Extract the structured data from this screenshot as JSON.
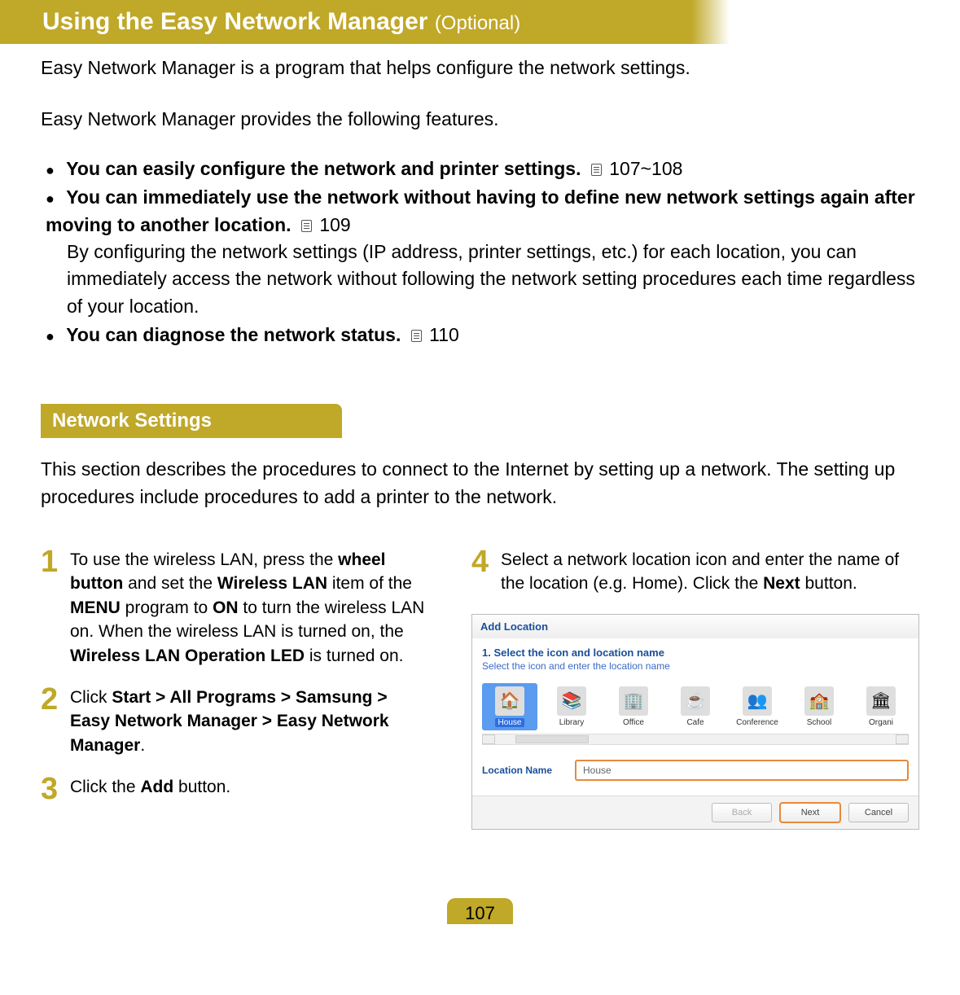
{
  "colors": {
    "accent": "#c0a828",
    "dialog_link": "#1a4e9b",
    "highlight_border": "#e68a3c"
  },
  "title": {
    "main": "Using the Easy Network Manager",
    "suffix": "(Optional)"
  },
  "intro1": "Easy Network Manager is a program that helps configure the network settings.",
  "intro2": "Easy Network Manager provides the following features.",
  "features": [
    {
      "text_bold": "You can easily configure the network and printer settings.",
      "ref": "107~108"
    },
    {
      "text_bold": "You can immediately use the network without having to define new network settings again after moving to another location.",
      "ref": "109",
      "detail": "By configuring the network settings (IP address, printer settings, etc.) for each location, you can immediately access the network without following the network setting procedures each time regardless of your location."
    },
    {
      "text_bold": "You can diagnose the network status.",
      "ref": "110"
    }
  ],
  "section": {
    "header": "Network Settings",
    "intro": "This section describes the procedures to connect to the Internet by setting up a network. The setting up procedures include procedures to add a printer to the network."
  },
  "steps": {
    "s1": {
      "num": "1",
      "before": "To use the wireless LAN, press the ",
      "b1": "wheel button",
      "mid1": " and set the ",
      "b2": "Wireless LAN",
      "mid2": " item of the ",
      "b3": "MENU",
      "mid3": " program to ",
      "b4": "ON",
      "mid4": " to turn the wireless LAN on. When the wireless LAN is turned on, the ",
      "b5": "Wireless LAN Operation LED",
      "after": " is turned on."
    },
    "s2": {
      "num": "2",
      "before": "Click ",
      "b1": "Start > All Programs > Samsung > Easy Network Manager > Easy Network Manager",
      "after": "."
    },
    "s3": {
      "num": "3",
      "before": "Click the ",
      "b1": "Add",
      "after": " button."
    },
    "s4": {
      "num": "4",
      "before": "Select a network location icon and enter the name of the location (e.g. Home). Click the ",
      "b1": "Next",
      "after": " button."
    }
  },
  "dialog": {
    "title": "Add Location",
    "sub1": "1. Select the icon and location name",
    "sub2": "Select the icon and enter the location name",
    "icons": [
      {
        "label": "House",
        "emoji": "🏠",
        "selected": true
      },
      {
        "label": "Library",
        "emoji": "📚",
        "selected": false
      },
      {
        "label": "Office",
        "emoji": "🏢",
        "selected": false
      },
      {
        "label": "Cafe",
        "emoji": "☕",
        "selected": false
      },
      {
        "label": "Conference",
        "emoji": "👥",
        "selected": false
      },
      {
        "label": "School",
        "emoji": "🏫",
        "selected": false
      },
      {
        "label": "Organi",
        "emoji": "🏛",
        "selected": false
      }
    ],
    "location_name_label": "Location Name",
    "location_name_value": "House",
    "buttons": {
      "back": "Back",
      "next": "Next",
      "cancel": "Cancel"
    }
  },
  "page_number": "107"
}
